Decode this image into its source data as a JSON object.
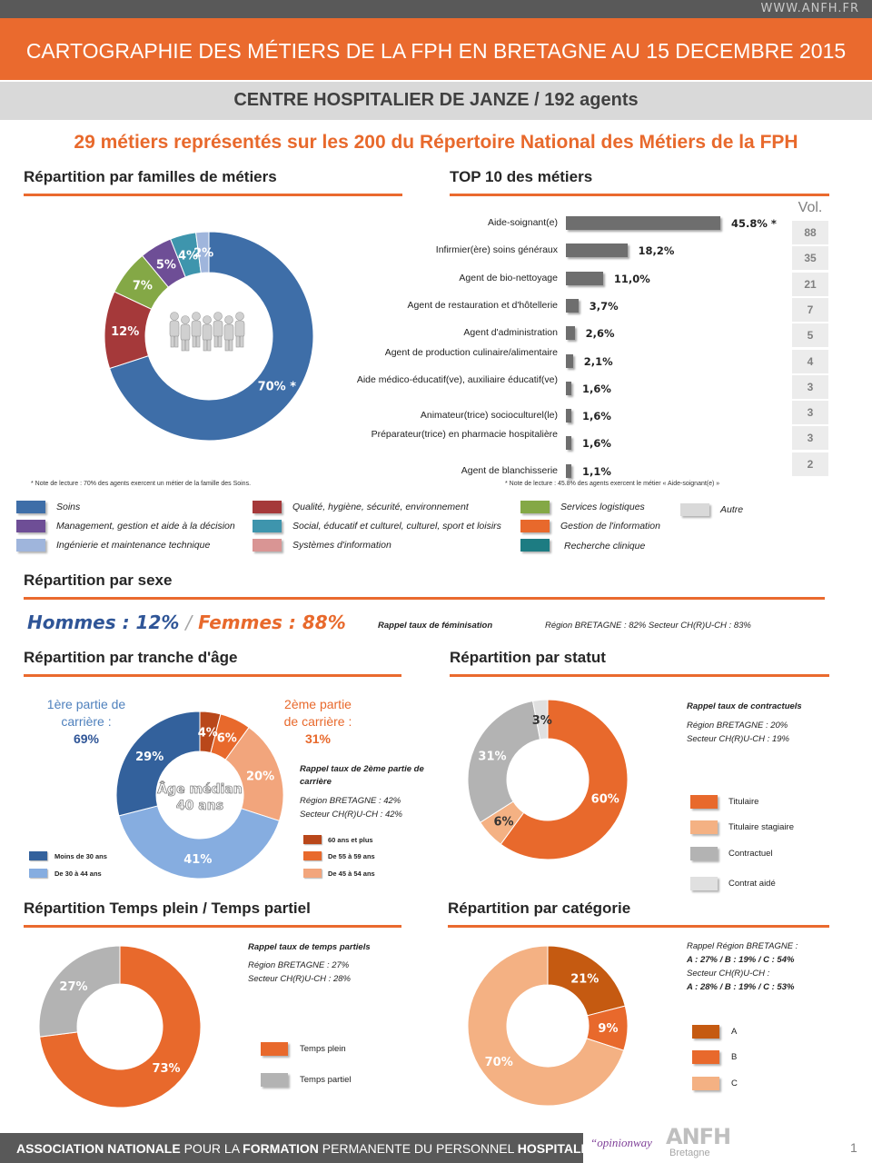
{
  "header": {
    "url": "WWW.ANFH.FR",
    "title": "CARTOGRAPHIE DES MÉTIERS DE LA FPH EN BRETAGNE AU 15 DECEMBRE 2015",
    "subtitle": "CENTRE HOSPITALIER DE JANZE / 192 agents",
    "headline": "29 métiers représentés sur les 200 du Répertoire National des Métiers de la FPH"
  },
  "families": {
    "title": "Répartition par familles de métiers",
    "note": "* Note de lecture : 70% des agents exercent un métier de la famille des Soins.",
    "chart_data": {
      "type": "pie",
      "categories": [
        "Soins",
        "Qualité, hygiène, sécurité, environnement",
        "Services logistiques",
        "Management, gestion et aide à la décision",
        "Social, éducatif et culturel, culturel, sport et loisirs",
        "Ingénierie et maintenance technique"
      ],
      "values": [
        70,
        12,
        7,
        5,
        4,
        2
      ],
      "labels": [
        "70% *",
        "12%",
        "7%",
        "5%",
        "4%",
        "2%"
      ],
      "colors": [
        "#3e6ea8",
        "#a5393a",
        "#84a846",
        "#6e4e96",
        "#3e95ad",
        "#9fb5dc"
      ]
    }
  },
  "legend": [
    {
      "label": "Soins",
      "color": "#3e6ea8"
    },
    {
      "label": "Qualité, hygiène, sécurité, environnement",
      "color": "#a5393a"
    },
    {
      "label": "Services logistiques",
      "color": "#84a846"
    },
    {
      "label": "Autre",
      "color": "#d9d9d9"
    },
    {
      "label": "Management, gestion et aide à la décision",
      "color": "#6e4e96"
    },
    {
      "label": "Social, éducatif et culturel, culturel, sport et loisirs",
      "color": "#3e95ad"
    },
    {
      "label": "Gestion de l'information",
      "color": "#e8692c"
    },
    {
      "label": "Ingénierie et maintenance technique",
      "color": "#9fb5dc"
    },
    {
      "label": "Systèmes d'information",
      "color": "#d99594"
    },
    {
      "label": "Recherche clinique",
      "color": "#1d7c82"
    }
  ],
  "top10": {
    "title": "TOP 10 des métiers",
    "vol_header": "Vol.",
    "note": "* Note de lecture : 45.8% des agents exercent le métier « Aide-soignant(e) »",
    "chart_data": {
      "type": "bar",
      "categories": [
        "Aide-soignant(e)",
        "Infirmier(ère) soins généraux",
        "Agent de bio-nettoyage",
        "Agent de restauration et d'hôtellerie",
        "Agent d'administration",
        "Agent de production culinaire/alimentaire",
        "Aide médico-éducatif(ve), auxiliaire éducatif(ve)",
        "Animateur(trice) socioculturel(le)",
        "Préparateur(trice) en pharmacie hospitalière",
        "Agent de blanchisserie"
      ],
      "values": [
        45.8,
        18.2,
        11.0,
        3.7,
        2.6,
        2.1,
        1.6,
        1.6,
        1.6,
        1.1
      ],
      "labels": [
        "45.8% *",
        "18,2%",
        "11,0%",
        "3,7%",
        "2,6%",
        "2,1%",
        "1,6%",
        "1,6%",
        "1,6%",
        "1,1%"
      ],
      "volumes": [
        "88",
        "35",
        "21",
        "7",
        "5",
        "4",
        "3",
        "3",
        "3",
        "2"
      ],
      "xlim": [
        0,
        45.8
      ]
    }
  },
  "sexe": {
    "title": "Répartition par sexe",
    "hommes": "Hommes : 12%",
    "sep": "/",
    "femmes": "Femmes : 88%",
    "rappel": "Rappel taux de féminisation",
    "region": "Région BRETAGNE : 82%   Secteur CH(R)U-CH : 83%"
  },
  "age": {
    "title": "Répartition par tranche d'âge",
    "first_l1": "1ère partie de",
    "first_l2": "carrière :",
    "first_val": "69%",
    "second_l1": "2ème partie",
    "second_l2": "de carrière :",
    "second_val": "31%",
    "center_l1": "Âge médian",
    "center_l2": "40 ans",
    "rappel": "Rappel taux de 2ème partie de carrière",
    "region": "Région BRETAGNE : 42%",
    "secteur": "Secteur CH(R)U-CH : 42%",
    "chart_data": {
      "type": "pie",
      "categories": [
        "60 ans et plus",
        "De 55 à 59 ans",
        "De 45 à 54 ans",
        "De 30 à 44 ans",
        "Moins de 30 ans"
      ],
      "values": [
        4,
        6,
        20,
        41,
        29
      ],
      "labels": [
        "4%",
        "6%",
        "20%",
        "41%",
        "29%"
      ],
      "colors": [
        "#b9471a",
        "#e8692c",
        "#f2a57c",
        "#86ade0",
        "#33619c"
      ]
    }
  },
  "statut": {
    "title": "Répartition par statut",
    "rappel": "Rappel taux de contractuels",
    "region": "Région BRETAGNE : 20%",
    "secteur": "Secteur CH(R)U-CH : 19%",
    "chart_data": {
      "type": "pie",
      "categories": [
        "Titulaire",
        "Titulaire stagiaire",
        "Contractuel",
        "Contrat aidé"
      ],
      "values": [
        60,
        6,
        31,
        3
      ],
      "labels": [
        "60%",
        "6%",
        "31%",
        "3%"
      ],
      "colors": [
        "#e8692c",
        "#f4b183",
        "#b3b3b3",
        "#e0e0e0"
      ]
    }
  },
  "temps": {
    "title": "Répartition Temps plein / Temps partiel",
    "rappel": "Rappel taux de temps partiels",
    "region": "Région BRETAGNE : 27%",
    "secteur": "Secteur CH(R)U-CH : 28%",
    "chart_data": {
      "type": "pie",
      "categories": [
        "Temps plein",
        "Temps partiel"
      ],
      "values": [
        73,
        27
      ],
      "labels": [
        "73%",
        "27%"
      ],
      "colors": [
        "#e8692c",
        "#b3b3b3"
      ]
    }
  },
  "categorie": {
    "title": "Répartition par catégorie",
    "rappel_l1": "Rappel Région BRETAGNE :",
    "rappel_l2": "A : 27% / B : 19% / C : 54%",
    "rappel_l3": "Secteur CH(R)U-CH :",
    "rappel_l4": "A : 28% / B : 19% / C : 53%",
    "chart_data": {
      "type": "pie",
      "categories": [
        "A",
        "B",
        "C"
      ],
      "values": [
        21,
        9,
        70
      ],
      "labels": [
        "21%",
        "9%",
        "70%"
      ],
      "colors": [
        "#c55a11",
        "#e8692c",
        "#f4b183"
      ]
    }
  },
  "footer": {
    "text_bold1": "ASSOCIATION NATIONALE",
    "text1": " POUR LA ",
    "text_bold2": "FORMATION",
    "text2": " PERMANENTE DU PERSONNEL ",
    "text_bold3": "HOSPITALIER",
    "opinionway": "“opinionway",
    "anfh": "ANFH",
    "bretagne": "Bretagne",
    "page": "1"
  }
}
